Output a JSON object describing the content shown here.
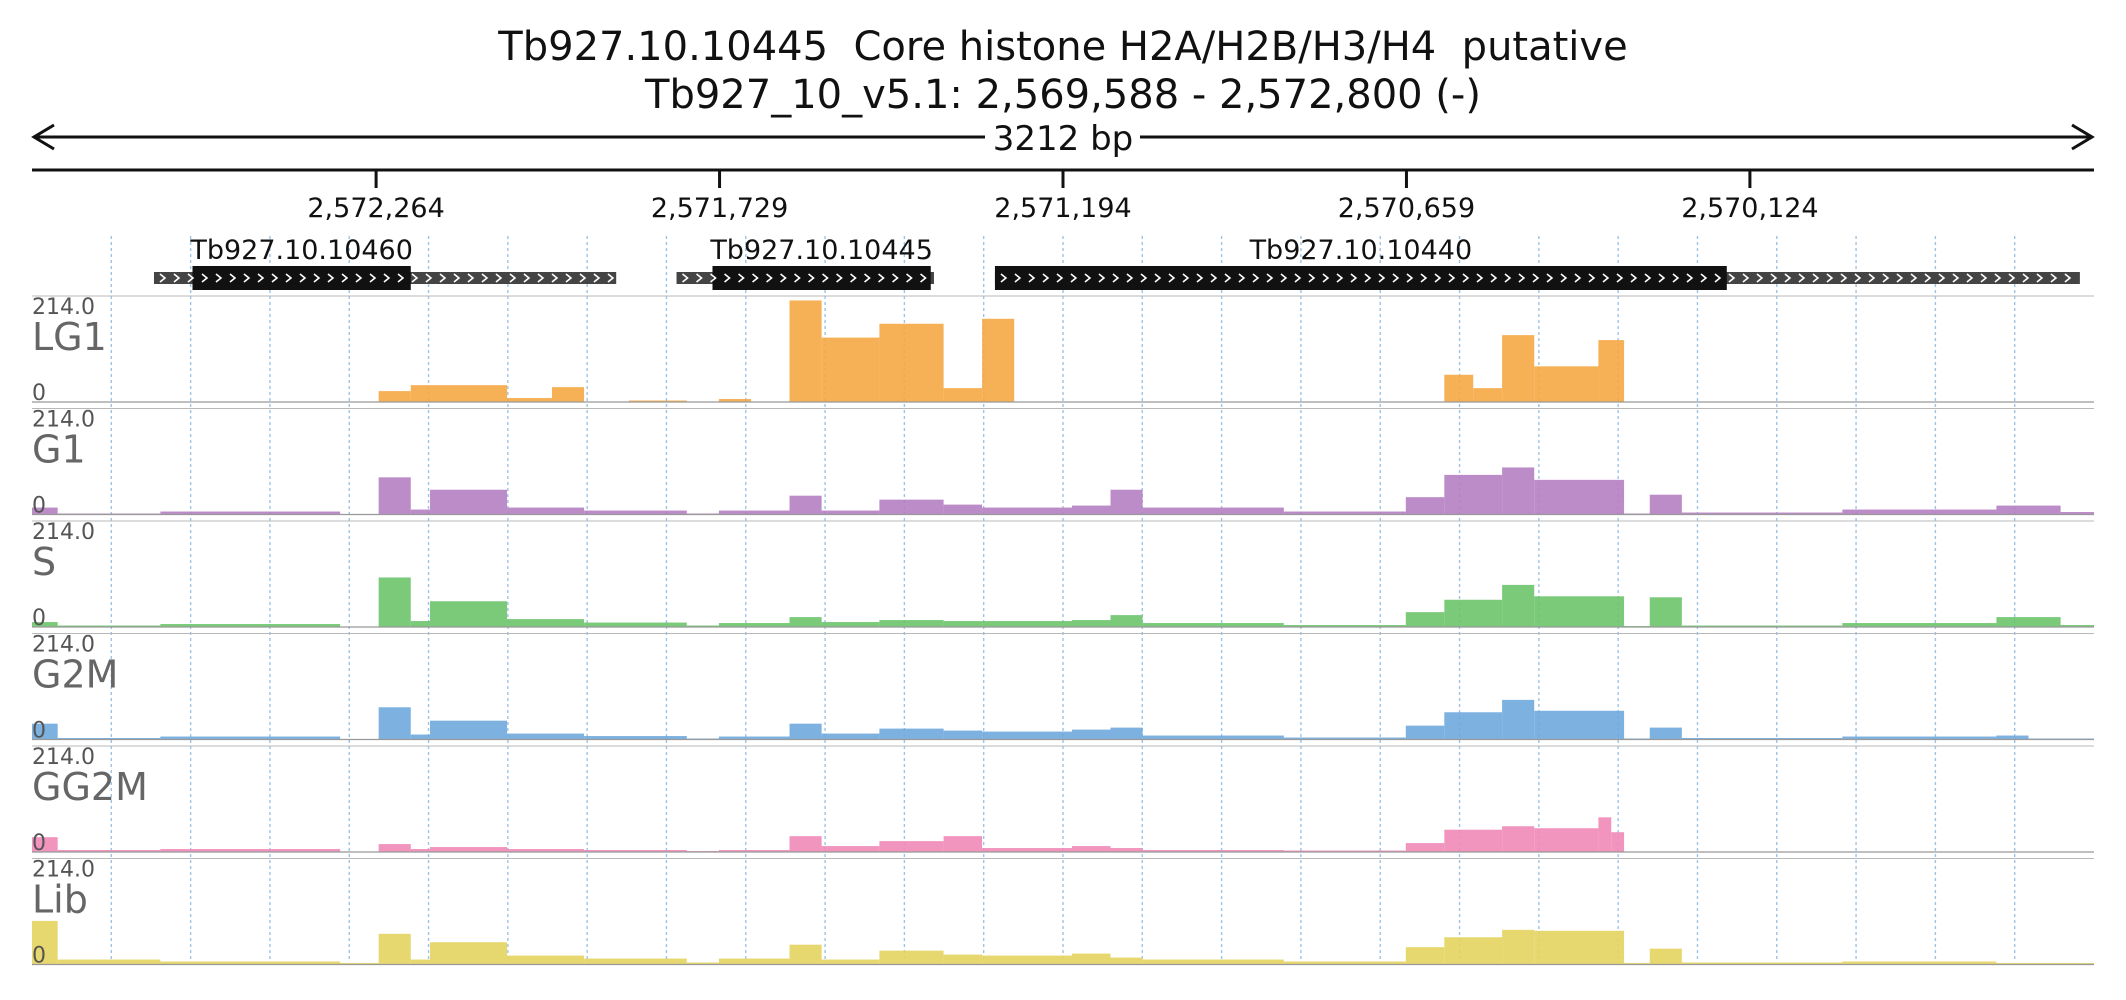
{
  "title": {
    "line1": "Tb927.10.10445  Core histone H2A/H2B/H3/H4  putative",
    "line2": "Tb927_10_v5.1: 2,569,588 - 2,572,800 (-)"
  },
  "span_label": "3212 bp",
  "chart_data": {
    "type": "area",
    "x_range": [
      2572800,
      2569588
    ],
    "x_ticks": [
      {
        "value": 2572264,
        "label": "2,572,264"
      },
      {
        "value": 2571729,
        "label": "2,571,729"
      },
      {
        "value": 2571194,
        "label": "2,571,194"
      },
      {
        "value": 2570659,
        "label": "2,570,659"
      },
      {
        "value": 2570124,
        "label": "2,570,124"
      }
    ],
    "genes": [
      {
        "name": "Tb927.10.10460",
        "utr_start": 2572610,
        "cds_start": 2572550,
        "cds_end": 2572210,
        "utr_end": 2571890
      },
      {
        "name": "Tb927.10.10445",
        "utr_start": 2571796,
        "cds_start": 2571740,
        "cds_end": 2571400,
        "utr_end": 2571395
      },
      {
        "name": "Tb927.10.10440",
        "utr_start": 2571300,
        "cds_start": 2571300,
        "cds_end": 2570160,
        "utr_end": 2569610
      }
    ],
    "ylim": [
      0,
      214.0
    ],
    "y_top_label": "214.0",
    "y_bottom_label": "0",
    "tracks": [
      {
        "name": "LG1",
        "color": "#f5a742",
        "segments": [
          [
            2572800,
            2572320,
            0.8
          ],
          [
            2572320,
            2572260,
            1
          ],
          [
            2572260,
            2572210,
            22
          ],
          [
            2572210,
            2572060,
            34
          ],
          [
            2572060,
            2571990,
            8
          ],
          [
            2571990,
            2571940,
            30
          ],
          [
            2571940,
            2571870,
            1
          ],
          [
            2571870,
            2571780,
            3
          ],
          [
            2571780,
            2571730,
            1
          ],
          [
            2571730,
            2571680,
            6
          ],
          [
            2571680,
            2571620,
            1
          ],
          [
            2571620,
            2571570,
            205
          ],
          [
            2571570,
            2571480,
            130
          ],
          [
            2571480,
            2571380,
            158
          ],
          [
            2571380,
            2571320,
            28
          ],
          [
            2571320,
            2571270,
            168
          ],
          [
            2571270,
            2570600,
            0.8
          ],
          [
            2570600,
            2570555,
            55
          ],
          [
            2570555,
            2570510,
            28
          ],
          [
            2570510,
            2570460,
            135
          ],
          [
            2570460,
            2570360,
            72
          ],
          [
            2570360,
            2570320,
            125
          ],
          [
            2570320,
            2569588,
            0.8
          ]
        ]
      },
      {
        "name": "G1",
        "color": "#b57fc2",
        "segments": [
          [
            2572800,
            2572760,
            14
          ],
          [
            2572760,
            2572600,
            2
          ],
          [
            2572600,
            2572320,
            6
          ],
          [
            2572320,
            2572260,
            1
          ],
          [
            2572260,
            2572210,
            75
          ],
          [
            2572210,
            2572180,
            10
          ],
          [
            2572180,
            2572060,
            50
          ],
          [
            2572060,
            2571940,
            14
          ],
          [
            2571940,
            2571780,
            8
          ],
          [
            2571780,
            2571730,
            2
          ],
          [
            2571730,
            2571620,
            8
          ],
          [
            2571620,
            2571570,
            38
          ],
          [
            2571570,
            2571480,
            8
          ],
          [
            2571480,
            2571380,
            30
          ],
          [
            2571380,
            2571320,
            20
          ],
          [
            2571320,
            2571180,
            14
          ],
          [
            2571180,
            2571120,
            18
          ],
          [
            2571120,
            2571070,
            50
          ],
          [
            2571070,
            2570850,
            14
          ],
          [
            2570850,
            2570660,
            6
          ],
          [
            2570660,
            2570600,
            35
          ],
          [
            2570600,
            2570510,
            80
          ],
          [
            2570510,
            2570460,
            95
          ],
          [
            2570460,
            2570320,
            70
          ],
          [
            2570320,
            2570280,
            2
          ],
          [
            2570280,
            2570230,
            40
          ],
          [
            2570230,
            2569980,
            4
          ],
          [
            2569980,
            2569740,
            10
          ],
          [
            2569740,
            2569640,
            18
          ],
          [
            2569640,
            2569588,
            5
          ]
        ]
      },
      {
        "name": "S",
        "color": "#6cc46c",
        "segments": [
          [
            2572800,
            2572760,
            10
          ],
          [
            2572760,
            2572600,
            3
          ],
          [
            2572600,
            2572320,
            6
          ],
          [
            2572320,
            2572260,
            1
          ],
          [
            2572260,
            2572210,
            100
          ],
          [
            2572210,
            2572180,
            12
          ],
          [
            2572180,
            2572060,
            52
          ],
          [
            2572060,
            2571940,
            16
          ],
          [
            2571940,
            2571780,
            9
          ],
          [
            2571780,
            2571730,
            3
          ],
          [
            2571730,
            2571620,
            8
          ],
          [
            2571620,
            2571570,
            20
          ],
          [
            2571570,
            2571480,
            10
          ],
          [
            2571480,
            2571380,
            14
          ],
          [
            2571380,
            2571320,
            12
          ],
          [
            2571320,
            2571180,
            12
          ],
          [
            2571180,
            2571120,
            14
          ],
          [
            2571120,
            2571070,
            24
          ],
          [
            2571070,
            2570850,
            8
          ],
          [
            2570850,
            2570660,
            4
          ],
          [
            2570660,
            2570600,
            30
          ],
          [
            2570600,
            2570510,
            55
          ],
          [
            2570510,
            2570460,
            85
          ],
          [
            2570460,
            2570320,
            62
          ],
          [
            2570320,
            2570280,
            2
          ],
          [
            2570280,
            2570230,
            60
          ],
          [
            2570230,
            2569980,
            3
          ],
          [
            2569980,
            2569740,
            8
          ],
          [
            2569740,
            2569640,
            20
          ],
          [
            2569640,
            2569588,
            4
          ]
        ]
      },
      {
        "name": "G2M",
        "color": "#6fa8dc",
        "segments": [
          [
            2572800,
            2572760,
            32
          ],
          [
            2572760,
            2572600,
            3
          ],
          [
            2572600,
            2572320,
            6
          ],
          [
            2572320,
            2572260,
            1
          ],
          [
            2572260,
            2572210,
            65
          ],
          [
            2572210,
            2572180,
            10
          ],
          [
            2572180,
            2572060,
            38
          ],
          [
            2572060,
            2571940,
            12
          ],
          [
            2571940,
            2571780,
            7
          ],
          [
            2571780,
            2571730,
            2
          ],
          [
            2571730,
            2571620,
            6
          ],
          [
            2571620,
            2571570,
            32
          ],
          [
            2571570,
            2571480,
            12
          ],
          [
            2571480,
            2571380,
            22
          ],
          [
            2571380,
            2571320,
            18
          ],
          [
            2571320,
            2571180,
            16
          ],
          [
            2571180,
            2571120,
            20
          ],
          [
            2571120,
            2571070,
            24
          ],
          [
            2571070,
            2570850,
            8
          ],
          [
            2570850,
            2570660,
            4
          ],
          [
            2570660,
            2570600,
            28
          ],
          [
            2570600,
            2570510,
            55
          ],
          [
            2570510,
            2570460,
            80
          ],
          [
            2570460,
            2570320,
            58
          ],
          [
            2570320,
            2570280,
            2
          ],
          [
            2570280,
            2570230,
            24
          ],
          [
            2570230,
            2569980,
            3
          ],
          [
            2569980,
            2569740,
            6
          ],
          [
            2569740,
            2569690,
            8
          ],
          [
            2569690,
            2569588,
            2
          ]
        ]
      },
      {
        "name": "GG2M",
        "color": "#ef89b8",
        "segments": [
          [
            2572800,
            2572760,
            30
          ],
          [
            2572760,
            2572600,
            4
          ],
          [
            2572600,
            2572320,
            6
          ],
          [
            2572320,
            2572260,
            1
          ],
          [
            2572260,
            2572210,
            16
          ],
          [
            2572210,
            2572180,
            6
          ],
          [
            2572180,
            2572060,
            10
          ],
          [
            2572060,
            2571940,
            6
          ],
          [
            2571940,
            2571780,
            4
          ],
          [
            2571780,
            2571730,
            2
          ],
          [
            2571730,
            2571620,
            4
          ],
          [
            2571620,
            2571570,
            32
          ],
          [
            2571570,
            2571480,
            12
          ],
          [
            2571480,
            2571380,
            22
          ],
          [
            2571380,
            2571320,
            32
          ],
          [
            2571320,
            2571180,
            8
          ],
          [
            2571180,
            2571120,
            12
          ],
          [
            2571120,
            2571070,
            8
          ],
          [
            2571070,
            2570850,
            4
          ],
          [
            2570850,
            2570660,
            3
          ],
          [
            2570660,
            2570600,
            18
          ],
          [
            2570600,
            2570510,
            45
          ],
          [
            2570510,
            2570460,
            52
          ],
          [
            2570460,
            2570360,
            48
          ],
          [
            2570360,
            2570340,
            70
          ],
          [
            2570340,
            2570320,
            40
          ],
          [
            2570320,
            2569588,
            1
          ]
        ]
      },
      {
        "name": "Lib",
        "color": "#e3d45f",
        "segments": [
          [
            2572800,
            2572760,
            88
          ],
          [
            2572760,
            2572600,
            10
          ],
          [
            2572600,
            2572320,
            6
          ],
          [
            2572320,
            2572260,
            3
          ],
          [
            2572260,
            2572210,
            62
          ],
          [
            2572210,
            2572180,
            10
          ],
          [
            2572180,
            2572060,
            45
          ],
          [
            2572060,
            2571940,
            18
          ],
          [
            2571940,
            2571780,
            12
          ],
          [
            2571780,
            2571730,
            4
          ],
          [
            2571730,
            2571620,
            12
          ],
          [
            2571620,
            2571570,
            40
          ],
          [
            2571570,
            2571480,
            10
          ],
          [
            2571480,
            2571380,
            28
          ],
          [
            2571380,
            2571320,
            20
          ],
          [
            2571320,
            2571180,
            18
          ],
          [
            2571180,
            2571120,
            22
          ],
          [
            2571120,
            2571070,
            14
          ],
          [
            2571070,
            2570850,
            10
          ],
          [
            2570850,
            2570660,
            6
          ],
          [
            2570660,
            2570600,
            35
          ],
          [
            2570600,
            2570510,
            55
          ],
          [
            2570510,
            2570460,
            70
          ],
          [
            2570460,
            2570320,
            68
          ],
          [
            2570320,
            2570280,
            3
          ],
          [
            2570280,
            2570230,
            32
          ],
          [
            2570230,
            2569980,
            4
          ],
          [
            2569980,
            2569740,
            6
          ],
          [
            2569740,
            2569588,
            3
          ]
        ]
      }
    ]
  }
}
